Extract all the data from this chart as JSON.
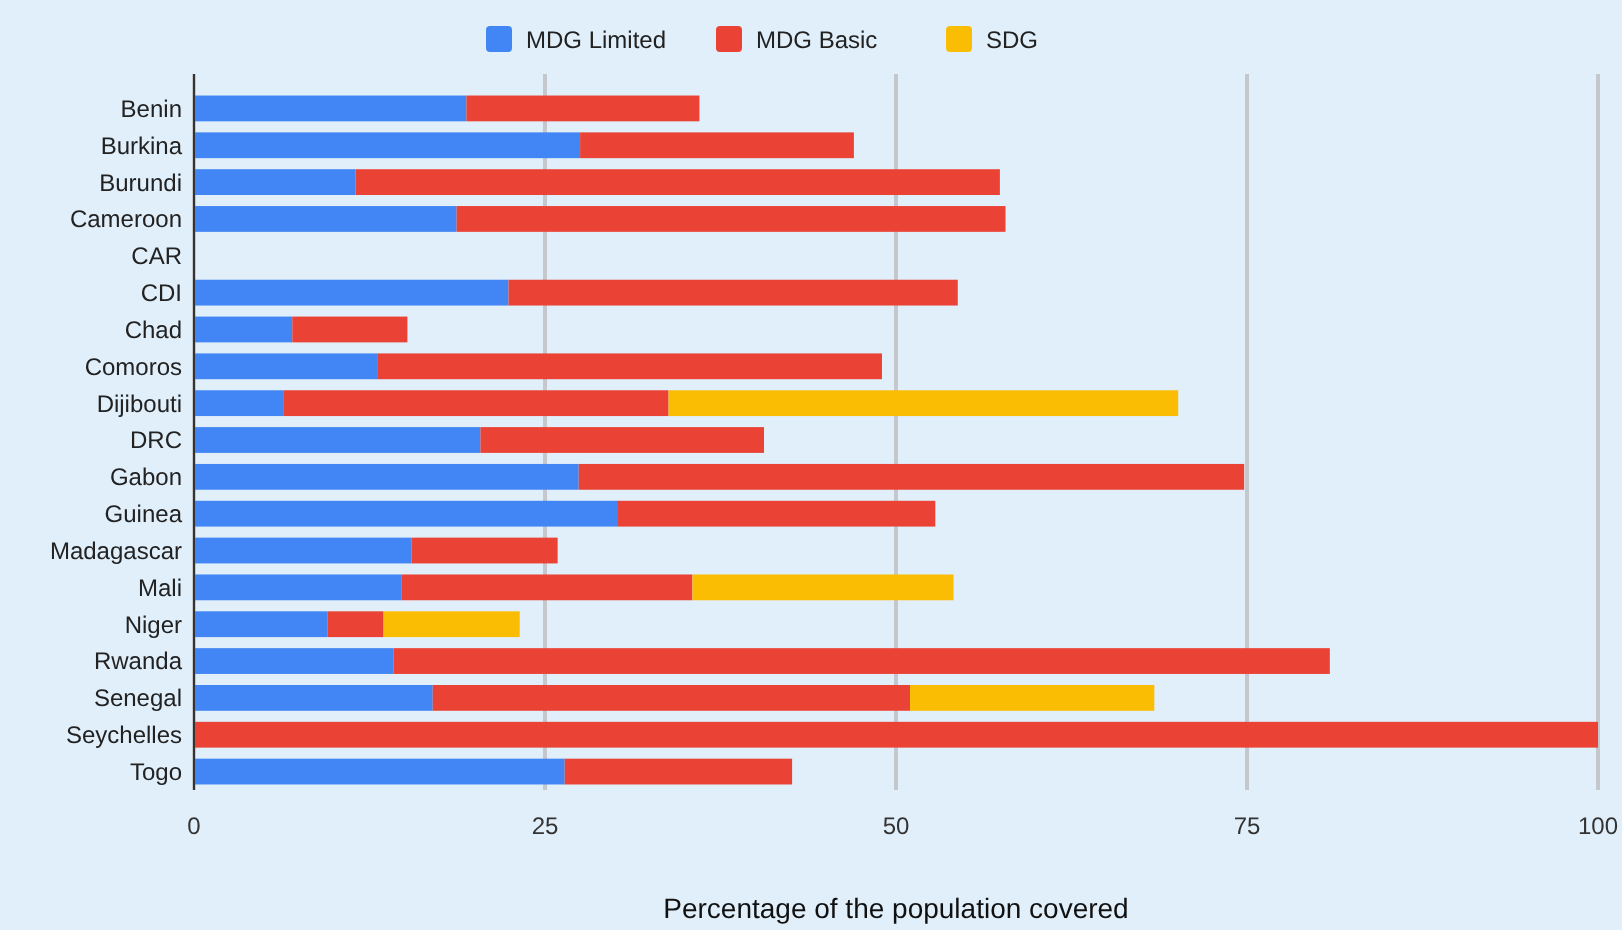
{
  "chart_data": {
    "type": "bar",
    "orientation": "horizontal",
    "stacked": true,
    "xlabel": "Percentage of the population covered",
    "categories": [
      "Benin",
      "Burkina",
      "Burundi",
      "Cameroon",
      "CAR",
      "CDI",
      "Chad",
      "Comoros",
      "Dijibouti",
      "DRC",
      "Gabon",
      "Guinea",
      "Madagascar",
      "Mali",
      "Niger",
      "Rwanda",
      "Senegal",
      "Seychelles",
      "Togo"
    ],
    "series": [
      {
        "name": "MDG Limited",
        "color": "#4285f4",
        "values": [
          19.4,
          27.5,
          11.5,
          18.7,
          null,
          22.4,
          7.0,
          13.1,
          6.4,
          20.4,
          27.4,
          30.2,
          15.5,
          14.8,
          9.5,
          14.2,
          17.0,
          0,
          26.4
        ]
      },
      {
        "name": "MDG Basic",
        "color": "#ea4335",
        "values": [
          16.6,
          19.5,
          45.9,
          39.1,
          null,
          32.0,
          8.2,
          35.9,
          27.4,
          20.2,
          47.4,
          22.6,
          10.4,
          20.7,
          4.0,
          66.7,
          34.0,
          100,
          16.2
        ]
      },
      {
        "name": "SDG",
        "color": "#fbbc04",
        "values": [
          null,
          null,
          null,
          null,
          null,
          null,
          null,
          null,
          36.3,
          null,
          null,
          null,
          null,
          18.6,
          9.7,
          null,
          17.4,
          null,
          null
        ]
      }
    ],
    "xlim": [
      0,
      100
    ],
    "xticks": [
      0,
      25,
      50,
      75,
      100
    ],
    "grid": "x",
    "legend": "top"
  }
}
